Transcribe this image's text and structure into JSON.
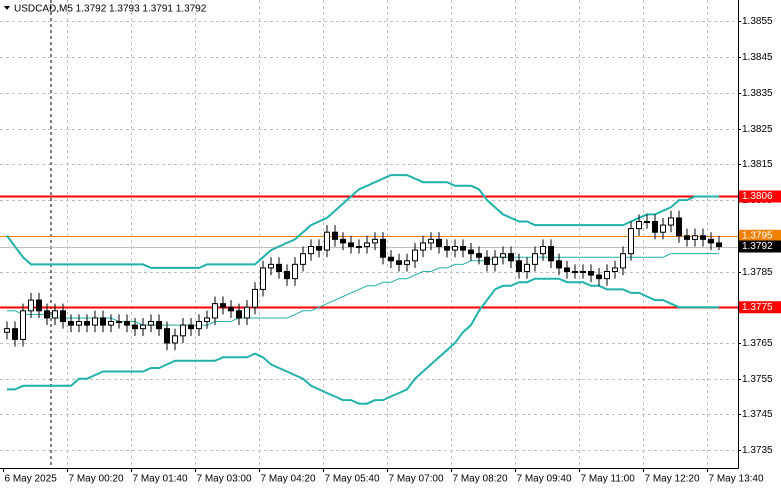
{
  "chart_data": {
    "type": "candlestick",
    "title": "USDCAD,M5  1.3792 1.3793 1.3791 1.3792",
    "categories": [
      "6 May 2025",
      null,
      null,
      null,
      null,
      null,
      null,
      null,
      "7 May 00:20",
      null,
      null,
      null,
      null,
      null,
      null,
      null,
      "7 May 01:40",
      null,
      null,
      null,
      null,
      null,
      null,
      null,
      "7 May 03:00",
      null,
      null,
      null,
      null,
      null,
      null,
      null,
      "7 May 04:20",
      null,
      null,
      null,
      null,
      null,
      null,
      null,
      "7 May 05:40",
      null,
      null,
      null,
      null,
      null,
      null,
      null,
      "7 May 07:00",
      null,
      null,
      null,
      null,
      null,
      null,
      null,
      "7 May 08:20",
      null,
      null,
      null,
      null,
      null,
      null,
      null,
      "7 May 09:40",
      null,
      null,
      null,
      null,
      null,
      null,
      null,
      "7 May 11:00",
      null,
      null,
      null,
      null,
      null,
      null,
      null,
      "7 May 12:20",
      null,
      null,
      null,
      null,
      null,
      null,
      null,
      "7 May 13:40",
      null
    ],
    "open": [
      1.3768,
      1.3769,
      1.3766,
      1.3774,
      1.3777,
      1.3774,
      1.3772,
      1.3774,
      1.3771,
      1.377,
      1.3771,
      1.377,
      1.3772,
      1.377,
      1.3771,
      1.3771,
      1.377,
      1.3769,
      1.377,
      1.3771,
      1.3769,
      1.3765,
      1.3767,
      1.377,
      1.3769,
      1.3771,
      1.3772,
      1.3776,
      1.3775,
      1.3774,
      1.3772,
      1.3775,
      1.378,
      1.3786,
      1.3787,
      1.3785,
      1.3783,
      1.3787,
      1.379,
      1.3792,
      1.3791,
      1.3796,
      1.3794,
      1.3793,
      1.3792,
      1.3792,
      1.3793,
      1.3794,
      1.3789,
      1.3788,
      1.3787,
      1.3788,
      1.3791,
      1.3793,
      1.3794,
      1.3792,
      1.3791,
      1.3792,
      1.3791,
      1.379,
      1.3789,
      1.3787,
      1.3789,
      1.379,
      1.3788,
      1.3785,
      1.3787,
      1.379,
      1.3792,
      1.3788,
      1.3786,
      1.3785,
      1.3785,
      1.3785,
      1.3784,
      1.3783,
      1.3785,
      1.3786,
      1.379,
      1.3797,
      1.3799,
      1.3799,
      1.3796,
      1.3798,
      1.38,
      1.3795,
      1.3794,
      1.3795,
      1.3794,
      1.3793
    ],
    "high": [
      1.3771,
      1.3771,
      1.3776,
      1.3779,
      1.3779,
      1.3776,
      1.3776,
      1.3776,
      1.3773,
      1.3773,
      1.3773,
      1.3774,
      1.3774,
      1.3773,
      1.3773,
      1.3773,
      1.3772,
      1.3772,
      1.3773,
      1.3773,
      1.3771,
      1.3769,
      1.3772,
      1.3772,
      1.3773,
      1.3774,
      1.3778,
      1.3778,
      1.3777,
      1.3776,
      1.3777,
      1.3782,
      1.3788,
      1.3789,
      1.3789,
      1.3787,
      1.3789,
      1.3792,
      1.3794,
      1.3794,
      1.3798,
      1.3798,
      1.3796,
      1.3795,
      1.3794,
      1.3795,
      1.3796,
      1.3796,
      1.3791,
      1.379,
      1.379,
      1.3793,
      1.3795,
      1.3796,
      1.3796,
      1.3794,
      1.3794,
      1.3794,
      1.3793,
      1.3792,
      1.3791,
      1.3791,
      1.3792,
      1.3792,
      1.379,
      1.3789,
      1.3792,
      1.3794,
      1.3794,
      1.379,
      1.3788,
      1.3787,
      1.3787,
      1.3787,
      1.3786,
      1.3787,
      1.3788,
      1.3792,
      1.3799,
      1.3801,
      1.3801,
      1.3801,
      1.38,
      1.3802,
      1.3802,
      1.3797,
      1.3797,
      1.3797,
      1.3796,
      1.3795
    ],
    "low": [
      1.3766,
      1.3764,
      1.3764,
      1.3772,
      1.3772,
      1.377,
      1.377,
      1.3769,
      1.3768,
      1.3768,
      1.3768,
      1.3768,
      1.3768,
      1.3768,
      1.3769,
      1.3768,
      1.3767,
      1.3767,
      1.3768,
      1.3767,
      1.3763,
      1.3763,
      1.3765,
      1.3767,
      1.3767,
      1.3769,
      1.377,
      1.3773,
      1.3772,
      1.377,
      1.377,
      1.3773,
      1.3778,
      1.3784,
      1.3783,
      1.3781,
      1.3781,
      1.3785,
      1.3788,
      1.3789,
      1.3789,
      1.3792,
      1.3791,
      1.379,
      1.379,
      1.379,
      1.3791,
      1.3787,
      1.3786,
      1.3785,
      1.3785,
      1.3786,
      1.3789,
      1.3791,
      1.379,
      1.3789,
      1.3789,
      1.3789,
      1.3788,
      1.3787,
      1.3785,
      1.3785,
      1.3787,
      1.3786,
      1.3783,
      1.3783,
      1.3785,
      1.3788,
      1.3786,
      1.3784,
      1.3783,
      1.3783,
      1.3783,
      1.3782,
      1.3781,
      1.3781,
      1.3783,
      1.3784,
      1.3788,
      1.3795,
      1.3797,
      1.3794,
      1.3794,
      1.3796,
      1.3793,
      1.3792,
      1.3792,
      1.3792,
      1.3791,
      1.3791
    ],
    "close": [
      1.3769,
      1.3766,
      1.3774,
      1.3777,
      1.3774,
      1.3772,
      1.3774,
      1.3771,
      1.377,
      1.3771,
      1.377,
      1.3772,
      1.377,
      1.3771,
      1.3771,
      1.377,
      1.3769,
      1.377,
      1.3771,
      1.3769,
      1.3765,
      1.3767,
      1.377,
      1.3769,
      1.3771,
      1.3772,
      1.3776,
      1.3775,
      1.3774,
      1.3772,
      1.3775,
      1.378,
      1.3786,
      1.3787,
      1.3785,
      1.3783,
      1.3787,
      1.379,
      1.3792,
      1.3791,
      1.3796,
      1.3794,
      1.3793,
      1.3792,
      1.3792,
      1.3793,
      1.3794,
      1.3789,
      1.3788,
      1.3787,
      1.3788,
      1.3791,
      1.3793,
      1.3794,
      1.3792,
      1.3791,
      1.3792,
      1.3791,
      1.379,
      1.3789,
      1.3787,
      1.3789,
      1.379,
      1.3788,
      1.3785,
      1.3787,
      1.379,
      1.3792,
      1.3788,
      1.3786,
      1.3785,
      1.3785,
      1.3785,
      1.3784,
      1.3783,
      1.3785,
      1.3786,
      1.379,
      1.3797,
      1.3799,
      1.3799,
      1.3796,
      1.3798,
      1.38,
      1.3795,
      1.3794,
      1.3795,
      1.3794,
      1.3793,
      1.3792
    ],
    "color_up": "#ffffff",
    "color_down": "#000000",
    "series": [
      {
        "color": "#20b2aa",
        "width": 2,
        "values": [
          1.3795,
          1.3792,
          1.3789,
          1.3787,
          1.3787,
          1.3787,
          1.3787,
          1.3787,
          1.3787,
          1.3787,
          1.3787,
          1.3787,
          1.3787,
          1.3787,
          1.3787,
          1.3787,
          1.3787,
          1.3787,
          1.3786,
          1.3786,
          1.3786,
          1.3786,
          1.3786,
          1.3786,
          1.3786,
          1.3787,
          1.3787,
          1.3787,
          1.3787,
          1.3787,
          1.3787,
          1.3787,
          1.3789,
          1.3791,
          1.3792,
          1.3793,
          1.3794,
          1.3796,
          1.3798,
          1.3799,
          1.38,
          1.3802,
          1.3804,
          1.3806,
          1.3808,
          1.3809,
          1.381,
          1.3811,
          1.3812,
          1.3812,
          1.3812,
          1.3811,
          1.381,
          1.381,
          1.381,
          1.381,
          1.3809,
          1.3809,
          1.3809,
          1.3808,
          1.3805,
          1.3803,
          1.3801,
          1.38,
          1.3799,
          1.3799,
          1.3798,
          1.3798,
          1.3798,
          1.3798,
          1.3798,
          1.3798,
          1.3798,
          1.3798,
          1.3798,
          1.3798,
          1.3798,
          1.3798,
          1.3799,
          1.38,
          1.3801,
          1.3801,
          1.3802,
          1.3803,
          1.3805,
          1.3805,
          1.3806,
          1.3806,
          1.3806,
          1.3806
        ]
      },
      {
        "color": "#20b2aa",
        "width": 1,
        "values": [
          1.3774,
          1.3774,
          1.3773,
          1.3773,
          1.3773,
          1.3773,
          1.3772,
          1.3772,
          1.3772,
          1.3772,
          1.3772,
          1.3772,
          1.3772,
          1.3772,
          1.3771,
          1.3771,
          1.3771,
          1.377,
          1.377,
          1.377,
          1.377,
          1.377,
          1.377,
          1.377,
          1.377,
          1.377,
          1.3771,
          1.3771,
          1.3771,
          1.3772,
          1.3772,
          1.3772,
          1.3772,
          1.3772,
          1.3772,
          1.3772,
          1.3773,
          1.3774,
          1.3774,
          1.3775,
          1.3776,
          1.3777,
          1.3778,
          1.3779,
          1.378,
          1.3781,
          1.3781,
          1.3782,
          1.3782,
          1.3783,
          1.3783,
          1.3784,
          1.3785,
          1.3785,
          1.3786,
          1.3786,
          1.3787,
          1.3787,
          1.3788,
          1.3788,
          1.3788,
          1.3789,
          1.3789,
          1.3789,
          1.3789,
          1.3789,
          1.3789,
          1.3789,
          1.3789,
          1.3789,
          1.3789,
          1.3789,
          1.3789,
          1.3789,
          1.3789,
          1.3789,
          1.3789,
          1.3789,
          1.3789,
          1.3789,
          1.3789,
          1.3789,
          1.3789,
          1.379,
          1.379,
          1.379,
          1.379,
          1.379,
          1.379,
          1.379
        ]
      },
      {
        "color": "#20b2aa",
        "width": 2,
        "values": [
          1.3752,
          1.3752,
          1.3753,
          1.3753,
          1.3753,
          1.3753,
          1.3753,
          1.3753,
          1.3753,
          1.3755,
          1.3755,
          1.3756,
          1.3757,
          1.3757,
          1.3757,
          1.3757,
          1.3757,
          1.3757,
          1.3758,
          1.3758,
          1.3759,
          1.376,
          1.376,
          1.376,
          1.376,
          1.376,
          1.376,
          1.3761,
          1.3761,
          1.3761,
          1.3761,
          1.3762,
          1.3761,
          1.3759,
          1.3758,
          1.3757,
          1.3756,
          1.3755,
          1.3753,
          1.3752,
          1.3751,
          1.375,
          1.3749,
          1.3749,
          1.3748,
          1.3748,
          1.3749,
          1.3749,
          1.375,
          1.3751,
          1.3752,
          1.3755,
          1.3757,
          1.3759,
          1.3761,
          1.3763,
          1.3765,
          1.3768,
          1.377,
          1.3774,
          1.3777,
          1.378,
          1.3781,
          1.3781,
          1.3782,
          1.3782,
          1.3783,
          1.3783,
          1.3783,
          1.3783,
          1.3782,
          1.3782,
          1.3782,
          1.3781,
          1.3781,
          1.378,
          1.378,
          1.378,
          1.3779,
          1.3779,
          1.3778,
          1.3777,
          1.3777,
          1.3776,
          1.3775,
          1.3775,
          1.3775,
          1.3775,
          1.3775,
          1.3775
        ]
      }
    ],
    "levels": [
      {
        "value": 1.3806,
        "color": "#ff0000",
        "line_color": "#ff0000"
      },
      {
        "value": 1.3795,
        "color": "#f08000",
        "line_color": "#f08000"
      },
      {
        "value": 1.3775,
        "color": "#ff0000",
        "line_color": "#ff0000"
      },
      {
        "value": 1.3792,
        "color": "#000000",
        "line_color": "#c0c0c0"
      }
    ],
    "ylim": [
      1.373,
      1.3861
    ],
    "yticks": [
      1.3855,
      1.3845,
      1.3835,
      1.3825,
      1.3815,
      1.3805,
      1.3795,
      1.3785,
      1.3775,
      1.3765,
      1.3755,
      1.3745,
      1.3735
    ],
    "grid": true
  }
}
